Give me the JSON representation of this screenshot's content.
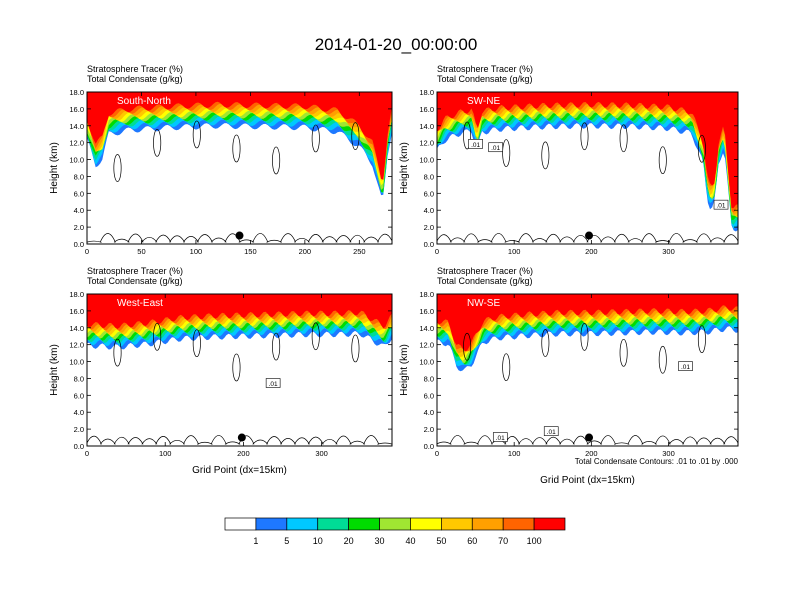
{
  "figure": {
    "title": "2014-01-20_00:00:00",
    "contour_note": "Total Condensate Contours: .01 to .01 by .000"
  },
  "colors": {
    "levels": [
      "#ffffff",
      "#1e78ff",
      "#00c8ff",
      "#00dc96",
      "#00dc00",
      "#a0e632",
      "#ffff00",
      "#ffc800",
      "#ffa000",
      "#ff6400",
      "#ff0000"
    ],
    "contour": "#000000"
  },
  "colorbar": {
    "labels": [
      "1",
      "5",
      "10",
      "20",
      "30",
      "40",
      "50",
      "60",
      "70",
      "100"
    ]
  },
  "chart_data": [
    {
      "type": "heatmap",
      "name": "South-North",
      "title_lines": [
        "Stratosphere Tracer   (%)",
        "Total Condensate   (g/kg)"
      ],
      "ylabel": "Height (km)",
      "xlabel": "",
      "xlim": [
        0,
        280
      ],
      "ylim": [
        0,
        18
      ],
      "xticks": [
        0,
        50,
        100,
        150,
        200,
        250
      ],
      "yticks": [
        0,
        2,
        4,
        6,
        8,
        10,
        12,
        14,
        16,
        18
      ],
      "ytick_labels": [
        "0.0",
        "2.0",
        "4.0",
        "6.0",
        "8.0",
        "10.0",
        "12.0",
        "14.0",
        "16.0",
        "18.0"
      ],
      "tracer_base": [
        [
          0,
          14.8
        ],
        [
          8,
          11.8
        ],
        [
          14,
          12.6
        ],
        [
          20,
          15.5
        ],
        [
          40,
          16.0
        ],
        [
          80,
          16.3
        ],
        [
          120,
          16.5
        ],
        [
          160,
          16.4
        ],
        [
          200,
          16.3
        ],
        [
          230,
          15.8
        ],
        [
          250,
          14.0
        ],
        [
          262,
          12.0
        ],
        [
          268,
          9.0
        ],
        [
          265,
          7.0
        ],
        [
          250,
          5.5
        ],
        [
          238,
          5.0
        ],
        [
          228,
          4.0
        ],
        [
          215,
          2.5
        ],
        [
          208,
          1.0
        ],
        [
          212,
          0.8
        ],
        [
          222,
          2.8
        ],
        [
          234,
          4.6
        ],
        [
          248,
          6.5
        ],
        [
          262,
          7.8
        ],
        [
          272,
          8.0
        ],
        [
          276,
          13.0
        ],
        [
          280,
          16.0
        ]
      ],
      "contour_labels": [],
      "marker": {
        "x": 140,
        "y": 1.0
      }
    },
    {
      "type": "heatmap",
      "name": "SW-NE",
      "title_lines": [
        "Stratosphere Tracer   (%)",
        "Total Condensate   (g/kg)"
      ],
      "ylabel": "Height (km)",
      "xlabel": "",
      "xlim": [
        0,
        390
      ],
      "ylim": [
        0,
        18
      ],
      "xticks": [
        0,
        100,
        200,
        300
      ],
      "yticks": [
        0,
        2,
        4,
        6,
        8,
        10,
        12,
        14,
        16,
        18
      ],
      "ytick_labels": [
        "0.0",
        "2.0",
        "4.0",
        "6.0",
        "8.0",
        "10.0",
        "12.0",
        "14.0",
        "16.0",
        "18.0"
      ],
      "tracer_base": [
        [
          0,
          13.5
        ],
        [
          10,
          14.8
        ],
        [
          30,
          15.6
        ],
        [
          45,
          15.9
        ],
        [
          52,
          13.5
        ],
        [
          58,
          15.7
        ],
        [
          80,
          16.1
        ],
        [
          140,
          16.4
        ],
        [
          200,
          16.5
        ],
        [
          260,
          16.4
        ],
        [
          300,
          16.2
        ],
        [
          330,
          15.6
        ],
        [
          345,
          12.0
        ],
        [
          350,
          8.0
        ],
        [
          355,
          6.5
        ],
        [
          360,
          7.5
        ],
        [
          365,
          12.0
        ],
        [
          372,
          14.0
        ],
        [
          378,
          8.0
        ],
        [
          382,
          4.2
        ],
        [
          390,
          4.4
        ]
      ],
      "contour_labels": [
        {
          "text": ".01",
          "x": 50,
          "y": 11.8
        },
        {
          "text": ".01",
          "x": 76,
          "y": 11.4
        },
        {
          "text": ".01",
          "x": 368,
          "y": 4.6
        }
      ],
      "marker": {
        "x": 197,
        "y": 1.0
      }
    },
    {
      "type": "heatmap",
      "name": "West-East",
      "title_lines": [
        "Stratosphere Tracer   (%)",
        "Total Condensate   (g/kg)"
      ],
      "ylabel": "Height (km)",
      "xlabel": "Grid Point (dx=15km)",
      "xlim": [
        0,
        390
      ],
      "ylim": [
        0,
        18
      ],
      "xticks": [
        0,
        100,
        200,
        300
      ],
      "yticks": [
        0,
        2,
        4,
        6,
        8,
        10,
        12,
        14,
        16,
        18
      ],
      "ytick_labels": [
        "0.0",
        "2.0",
        "4.0",
        "6.0",
        "8.0",
        "10.0",
        "12.0",
        "14.0",
        "16.0",
        "18.0"
      ],
      "tracer_base": [
        [
          0,
          14.4
        ],
        [
          40,
          14.2
        ],
        [
          80,
          14.6
        ],
        [
          120,
          15.2
        ],
        [
          160,
          15.4
        ],
        [
          200,
          15.5
        ],
        [
          240,
          15.6
        ],
        [
          280,
          15.7
        ],
        [
          320,
          15.7
        ],
        [
          350,
          15.8
        ],
        [
          380,
          14.2
        ],
        [
          390,
          15.4
        ]
      ],
      "contour_labels": [
        {
          "text": ".01",
          "x": 238,
          "y": 7.4
        }
      ],
      "marker": {
        "x": 198,
        "y": 1.0
      }
    },
    {
      "type": "heatmap",
      "name": "NW-SE",
      "title_lines": [
        "Stratosphere Tracer   (%)",
        "Total Condensate   (g/kg)"
      ],
      "ylabel": "Height (km)",
      "xlabel": "Grid Point (dx=15km)",
      "xlim": [
        0,
        390
      ],
      "ylim": [
        0,
        18
      ],
      "xticks": [
        0,
        100,
        200,
        300
      ],
      "yticks": [
        0,
        2,
        4,
        6,
        8,
        10,
        12,
        14,
        16,
        18
      ],
      "ytick_labels": [
        "0.0",
        "2.0",
        "4.0",
        "6.0",
        "8.0",
        "10.0",
        "12.0",
        "14.0",
        "16.0",
        "18.0"
      ],
      "tracer_base": [
        [
          0,
          14.8
        ],
        [
          15,
          14.6
        ],
        [
          25,
          12.0
        ],
        [
          35,
          11.3
        ],
        [
          45,
          12.2
        ],
        [
          60,
          14.8
        ],
        [
          80,
          15.3
        ],
        [
          120,
          15.6
        ],
        [
          160,
          15.8
        ],
        [
          200,
          15.8
        ],
        [
          240,
          15.9
        ],
        [
          280,
          16.0
        ],
        [
          320,
          15.9
        ],
        [
          350,
          16.0
        ],
        [
          375,
          16.4
        ],
        [
          390,
          16.2
        ]
      ],
      "contour_labels": [
        {
          "text": ".01",
          "x": 82,
          "y": 1.0
        },
        {
          "text": ".01",
          "x": 148,
          "y": 1.7
        },
        {
          "text": ".01",
          "x": 322,
          "y": 9.4
        }
      ],
      "marker": {
        "x": 197,
        "y": 1.0
      },
      "note": "Total Condensate Contours: .01 to .01 by .000"
    }
  ]
}
